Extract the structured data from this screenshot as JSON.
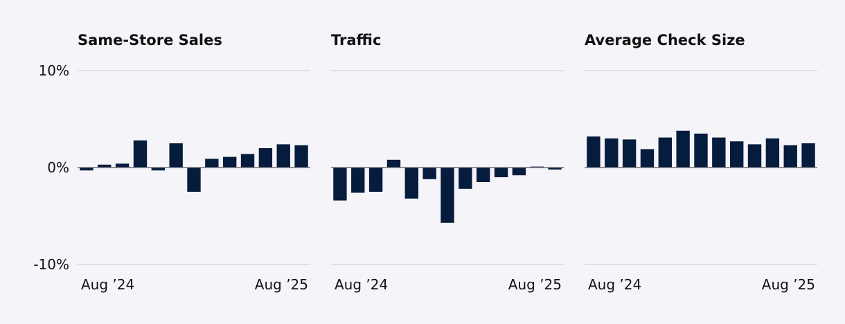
{
  "colors": {
    "background": "#f5f4f9",
    "bar": "#061c3d",
    "grid": "#d9d8e0",
    "zero_line": "#6e6e78",
    "text": "#111111"
  },
  "chart_data": [
    {
      "type": "bar",
      "title": "Same-Store Sales",
      "xlabel": "",
      "ylabel": "",
      "ylim": [
        -10,
        10
      ],
      "y_ticks": [
        10,
        0,
        -10
      ],
      "y_tick_labels": [
        "10%",
        "0%",
        "-10%"
      ],
      "x_tick_labels": [
        "Aug ’24",
        "Aug ’25"
      ],
      "categories": [
        "Aug 2024",
        "Sep 2024",
        "Oct 2024",
        "Nov 2024",
        "Dec 2024",
        "Jan 2025",
        "Feb 2025",
        "Mar 2025",
        "Apr 2025",
        "May 2025",
        "Jun 2025",
        "Jul 2025",
        "Aug 2025"
      ],
      "values": [
        -0.3,
        0.3,
        0.4,
        2.8,
        -0.3,
        2.5,
        -2.5,
        0.9,
        1.1,
        1.4,
        2.0,
        2.4,
        2.3
      ],
      "grid": true
    },
    {
      "type": "bar",
      "title": "Traffic",
      "xlabel": "",
      "ylabel": "",
      "ylim": [
        -10,
        10
      ],
      "y_ticks": [
        10,
        0,
        -10
      ],
      "y_tick_labels": [],
      "x_tick_labels": [
        "Aug ’24",
        "Aug ’25"
      ],
      "categories": [
        "Aug 2024",
        "Sep 2024",
        "Oct 2024",
        "Nov 2024",
        "Dec 2024",
        "Jan 2025",
        "Feb 2025",
        "Mar 2025",
        "Apr 2025",
        "May 2025",
        "Jun 2025",
        "Jul 2025",
        "Aug 2025"
      ],
      "values": [
        -3.4,
        -2.6,
        -2.5,
        0.8,
        -3.2,
        -1.2,
        -5.7,
        -2.2,
        -1.5,
        -1.0,
        -0.8,
        0.1,
        -0.2
      ],
      "grid": true
    },
    {
      "type": "bar",
      "title": "Average Check Size",
      "xlabel": "",
      "ylabel": "",
      "ylim": [
        -10,
        10
      ],
      "y_ticks": [
        10,
        0,
        -10
      ],
      "y_tick_labels": [],
      "x_tick_labels": [
        "Aug ’24",
        "Aug ’25"
      ],
      "categories": [
        "Aug 2024",
        "Sep 2024",
        "Oct 2024",
        "Nov 2024",
        "Dec 2024",
        "Jan 2025",
        "Feb 2025",
        "Mar 2025",
        "Apr 2025",
        "May 2025",
        "Jun 2025",
        "Jul 2025",
        "Aug 2025"
      ],
      "values": [
        3.2,
        3.0,
        2.9,
        1.9,
        3.1,
        3.8,
        3.5,
        3.1,
        2.7,
        2.4,
        3.0,
        2.3,
        2.5
      ],
      "grid": true
    }
  ]
}
